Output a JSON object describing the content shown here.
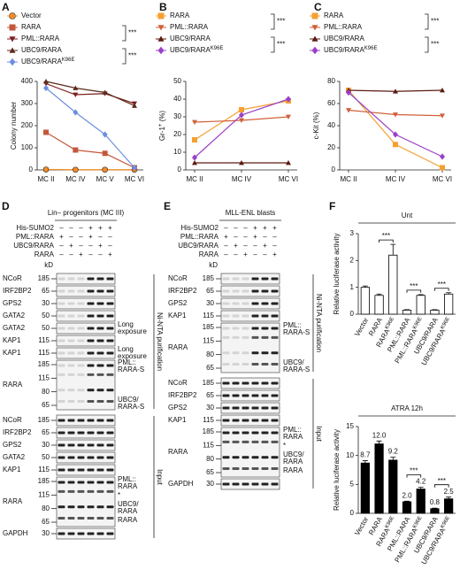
{
  "chart_data": [
    {
      "type": "line",
      "letter": "A",
      "ylabel": "Colony number",
      "categories": [
        "MC II",
        "MC IV",
        "MC V",
        "MC VI"
      ],
      "ylim": [
        0,
        400
      ],
      "yticks": [
        0,
        100,
        200,
        300,
        400
      ],
      "annotations": [
        "***",
        "***"
      ],
      "series": [
        {
          "name": "Vector",
          "color": "#f28c28",
          "marker": "circle",
          "values": [
            2,
            1,
            1,
            1
          ]
        },
        {
          "name": "RARA",
          "color": "#c4573a",
          "marker": "square",
          "values": [
            170,
            90,
            75,
            10
          ]
        },
        {
          "name": "PML::RARA",
          "color": "#7b1f1f",
          "marker": "tri-down",
          "values": [
            390,
            340,
            345,
            300
          ]
        },
        {
          "name": "UBC9/RARA",
          "color": "#5c2a1a",
          "marker": "tri-up",
          "values": [
            400,
            370,
            350,
            290
          ]
        },
        {
          "name": "UBC9/RARA",
          "name_sup": "K96E",
          "color": "#6d8fe0",
          "marker": "diamond",
          "values": [
            370,
            260,
            160,
            10
          ]
        }
      ]
    },
    {
      "type": "line",
      "letter": "B",
      "ylabel": "Gr-1",
      "ylabel_sup": "+",
      "ylabel_unit": " (%)",
      "categories": [
        "MC II",
        "MC IV",
        "MC VI"
      ],
      "ylim": [
        0,
        50
      ],
      "yticks": [
        0,
        10,
        20,
        30,
        40,
        50
      ],
      "annotations": [
        "***",
        "***"
      ],
      "series": [
        {
          "name": "RARA",
          "color": "#f5a030",
          "marker": "square",
          "values": [
            17,
            34,
            39
          ]
        },
        {
          "name": "PML::RARA",
          "color": "#d0603a",
          "marker": "tri-down",
          "values": [
            27,
            28,
            30
          ]
        },
        {
          "name": "UBC9/RARA",
          "color": "#5c1a10",
          "marker": "tri-up",
          "values": [
            4,
            4,
            4
          ]
        },
        {
          "name": "UBC9/RARA",
          "name_sup": "K96E",
          "color": "#9b40c8",
          "marker": "diamond",
          "values": [
            7,
            31,
            40
          ]
        }
      ]
    },
    {
      "type": "line",
      "letter": "C",
      "ylabel": "c-Kit (%)",
      "categories": [
        "MC II",
        "MC IV",
        "MC VI"
      ],
      "ylim": [
        0,
        80
      ],
      "yticks": [
        0,
        20,
        40,
        60,
        80
      ],
      "annotations": [
        "***",
        "***"
      ],
      "series": [
        {
          "name": "RARA",
          "color": "#f5a030",
          "marker": "square",
          "values": [
            72,
            23,
            2
          ]
        },
        {
          "name": "PML::RARA",
          "color": "#d0603a",
          "marker": "tri-down",
          "values": [
            54,
            50,
            49
          ]
        },
        {
          "name": "UBC9/RARA",
          "color": "#5c1a10",
          "marker": "tri-up",
          "values": [
            72,
            71,
            72
          ]
        },
        {
          "name": "UBC9/RARA",
          "name_sup": "K96E",
          "color": "#9b40c8",
          "marker": "diamond",
          "values": [
            70,
            32,
            12
          ]
        }
      ]
    },
    {
      "type": "bar",
      "letter": "F",
      "title": "Unt",
      "ylabel": "Relative luciferase activity",
      "color": "#ffffff",
      "categories": [
        {
          "label": "Vector"
        },
        {
          "label": "RARA"
        },
        {
          "label": "RARA",
          "sup": "K96E"
        },
        {
          "label": "PML::RARA"
        },
        {
          "label": "PML::RARA",
          "sup": "K96E"
        },
        {
          "label": "UBC9/RARA"
        },
        {
          "label": "UBC9/RARA",
          "sup": "K96E"
        }
      ],
      "values": [
        1.0,
        0.7,
        2.2,
        0.15,
        0.7,
        0.15,
        0.75
      ],
      "errors": [
        0.05,
        0.05,
        0.4,
        0.02,
        0.03,
        0.02,
        0.05
      ],
      "ylim": [
        0,
        3
      ],
      "yticks": [
        0,
        1,
        2,
        3
      ],
      "annotations": [
        "***",
        "***",
        "***"
      ]
    },
    {
      "type": "bar",
      "title": "ATRA 12h",
      "ylabel": "Relative luciferase activity",
      "color": "#000000",
      "categories": [
        {
          "label": "Vector"
        },
        {
          "label": "RARA"
        },
        {
          "label": "RARA",
          "sup": "K96E"
        },
        {
          "label": "PML::RARA"
        },
        {
          "label": "PML::RARA",
          "sup": "K96E"
        },
        {
          "label": "UBC9/RARA"
        },
        {
          "label": "UBC9/RARA",
          "sup": "K96E"
        }
      ],
      "values": [
        8.7,
        12.0,
        9.2,
        2.0,
        4.2,
        0.8,
        2.5
      ],
      "value_labels": [
        "8.7",
        "12.0",
        "9.2",
        "2.0",
        "4.2",
        "0.8",
        "2.5"
      ],
      "errors": [
        0.4,
        0.5,
        0.5,
        0.1,
        0.3,
        0.1,
        0.3
      ],
      "ylim": [
        0,
        15
      ],
      "yticks": [
        0,
        5,
        10,
        15
      ],
      "annotations": [
        "***",
        "***"
      ]
    }
  ],
  "blots": [
    {
      "letter": "D",
      "title": "Lin– progenitors (MC III)",
      "kd_label": "kD",
      "conditions": [
        {
          "name": "His-SUMO2",
          "signs": [
            "–",
            "–",
            "–",
            "+",
            "+",
            "+"
          ]
        },
        {
          "name": "PML::RARA",
          "signs": [
            "+",
            "–",
            "–",
            "+",
            "–",
            "–"
          ]
        },
        {
          "name": "UBC9/RARA",
          "signs": [
            "–",
            "+",
            "–",
            "–",
            "+",
            "–"
          ]
        },
        {
          "name": "RARA",
          "signs": [
            "–",
            "–",
            "+",
            "–",
            "–",
            "+"
          ]
        }
      ],
      "sections": [
        {
          "label": "Ni-NTA purification",
          "rows": [
            {
              "name": "NCoR",
              "kd": [
                185
              ]
            },
            {
              "name": "IRF2BP2",
              "kd": [
                65
              ]
            },
            {
              "name": "GPS2",
              "kd": [
                30
              ]
            },
            {
              "name": "GATA2",
              "kd": [
                50
              ]
            },
            {
              "name": "GATA2",
              "kd": [
                50
              ],
              "notes": [
                [
                  "Long",
                  "exposure"
                ]
              ]
            },
            {
              "name": "KAP1",
              "kd": [
                115
              ]
            },
            {
              "name": "KAP1",
              "kd": [
                115
              ],
              "notes": [
                [
                  "Long",
                  "exposure"
                ]
              ]
            },
            {
              "name": "RARA",
              "kd": [
                185,
                115,
                80,
                65
              ],
              "notes": [
                [
                  "PML::",
                  "RARA-S"
                ],
                [
                  "UBC9/",
                  "RARA-S"
                ]
              ]
            }
          ]
        },
        {
          "label": "Input",
          "rows": [
            {
              "name": "NCoR",
              "kd": [
                185
              ]
            },
            {
              "name": "IRF2BP2",
              "kd": [
                65
              ]
            },
            {
              "name": "GPS2",
              "kd": [
                30
              ]
            },
            {
              "name": "GATA2",
              "kd": [
                50
              ]
            },
            {
              "name": "KAP1",
              "kd": [
                115
              ]
            },
            {
              "name": "RARA",
              "kd": [
                185,
                115,
                80,
                65
              ],
              "notes": [
                [
                  "PML::",
                  "RARA"
                ],
                [
                  "*"
                ],
                [
                  "UBC9/",
                  "RARA"
                ],
                [
                  "RARA"
                ]
              ]
            },
            {
              "name": "GAPDH",
              "kd": [
                30
              ]
            }
          ]
        }
      ]
    },
    {
      "letter": "E",
      "title": "MLL-ENL blasts",
      "kd_label": "kD",
      "conditions": [
        {
          "name": "His-SUMO2",
          "signs": [
            "–",
            "–",
            "–",
            "+",
            "+",
            "+"
          ]
        },
        {
          "name": "PML::RARA",
          "signs": [
            "+",
            "–",
            "–",
            "+",
            "–",
            "–"
          ]
        },
        {
          "name": "UBC9/RARA",
          "signs": [
            "–",
            "+",
            "–",
            "–",
            "+",
            "–"
          ]
        },
        {
          "name": "RARA",
          "signs": [
            "–",
            "–",
            "+",
            "–",
            "–",
            "+"
          ]
        }
      ],
      "sections": [
        {
          "label": "Ni-NTA purification",
          "rows": [
            {
              "name": "NCoR",
              "kd": [
                185
              ]
            },
            {
              "name": "IRF2BP2",
              "kd": [
                65
              ]
            },
            {
              "name": "GPS2",
              "kd": [
                30
              ]
            },
            {
              "name": "KAP1",
              "kd": [
                115
              ]
            },
            {
              "name": "RARA",
              "kd": [
                185,
                115,
                80,
                65
              ],
              "notes": [
                [
                  "PML::",
                  "RARA-S"
                ],
                [
                  "UBC9/",
                  "RARA-S"
                ]
              ]
            }
          ]
        },
        {
          "label": "Input",
          "rows": [
            {
              "name": "NCoR",
              "kd": [
                185
              ]
            },
            {
              "name": "IRF2BP2",
              "kd": [
                65
              ]
            },
            {
              "name": "GPS2",
              "kd": [
                30
              ]
            },
            {
              "name": "KAP1",
              "kd": [
                115
              ]
            },
            {
              "name": "RARA",
              "kd": [
                185,
                115,
                80,
                65
              ],
              "notes": [
                [
                  "PML::",
                  "RARA"
                ],
                [
                  "*"
                ],
                [
                  "UBC9/",
                  "RARA"
                ],
                [
                  "RARA"
                ]
              ]
            },
            {
              "name": "GAPDH",
              "kd": [
                30
              ]
            }
          ]
        }
      ]
    }
  ]
}
